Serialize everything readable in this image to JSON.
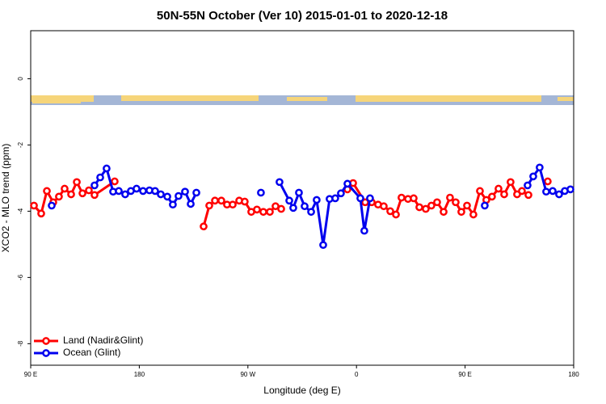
{
  "chart_data": {
    "type": "line",
    "title": "50N-55N October (Ver 10)   2015-01-01 to 2020-12-18",
    "x_label": "Longitude (deg E)",
    "y_label": "XCO2 - MLO trend (ppm)",
    "xlim": [
      90,
      540
    ],
    "ylim": [
      -8.65,
      1.45
    ],
    "xticks": [
      {
        "value": 90,
        "label": "90 E"
      },
      {
        "value": 180,
        "label": "180"
      },
      {
        "value": 270,
        "label": "90 W"
      },
      {
        "value": 360,
        "label": "0"
      },
      {
        "value": 450,
        "label": "90 E"
      },
      {
        "value": 540,
        "label": "180"
      }
    ],
    "yticks": [
      0,
      -2,
      -4,
      -6,
      -8
    ],
    "legend": "bottom-left",
    "series": [
      {
        "name": "Land (Nadir&Glint)",
        "color": "#ff0000",
        "x": [
          92.7,
          98.7,
          103.4,
          108.7,
          113.4,
          118.1,
          123.5,
          128.2,
          132.9,
          138.2,
          142.9,
          159.6,
          null,
          233.3,
          238.0,
          242.7,
          248.0,
          252.7,
          257.4,
          262.8,
          267.4,
          272.8,
          277.5,
          282.8,
          288.2,
          292.9,
          297.6,
          null,
          352.5,
          357.2,
          367.2,
          372.6,
          377.9,
          382.6,
          388.0,
          392.7,
          397.3,
          402.7,
          407.4,
          412.1,
          417.4,
          422.1,
          426.8,
          432.2,
          437.5,
          442.2,
          446.9,
          451.6,
          456.9,
          462.3,
          467.6,
          472.3,
          477.7,
          482.4,
          487.7,
          493.1,
          497.1,
          502.5,
          null,
          518.5
        ],
        "values": [
          -3.83,
          -4.07,
          -3.39,
          -3.73,
          -3.56,
          -3.32,
          -3.49,
          -3.12,
          -3.46,
          -3.37,
          -3.51,
          -3.1,
          null,
          -4.46,
          -3.83,
          -3.68,
          -3.68,
          -3.8,
          -3.8,
          -3.68,
          -3.71,
          -4.02,
          -3.95,
          -4.02,
          -4.02,
          -3.85,
          -3.93,
          null,
          -3.34,
          -3.15,
          -3.73,
          -3.73,
          -3.8,
          -3.85,
          -4.0,
          -4.1,
          -3.59,
          -3.63,
          -3.61,
          -3.88,
          -3.93,
          -3.83,
          -3.73,
          -4.02,
          -3.59,
          -3.73,
          -4.02,
          -3.83,
          -4.1,
          -3.39,
          -3.66,
          -3.56,
          -3.32,
          -3.49,
          -3.12,
          -3.49,
          -3.39,
          -3.51,
          null,
          -3.1
        ]
      },
      {
        "name": "Ocean (Glint)",
        "color": "#0000ee",
        "x": [
          107.4,
          null,
          142.9,
          147.6,
          152.9,
          158.3,
          163.0,
          168.3,
          173.0,
          177.7,
          183.1,
          188.4,
          193.1,
          197.8,
          203.2,
          207.8,
          212.5,
          217.9,
          222.6,
          227.3,
          null,
          280.8,
          null,
          296.2,
          304.3,
          307.6,
          312.3,
          317.0,
          322.4,
          327.0,
          332.4,
          337.7,
          342.4,
          347.1,
          352.5,
          363.2,
          366.5,
          371.2,
          null,
          466.3,
          null,
          501.8,
          506.5,
          511.8,
          517.2,
          522.6,
          527.9,
          532.6,
          537.3
        ],
        "values": [
          -3.83,
          null,
          -3.22,
          -2.98,
          -2.71,
          -3.41,
          -3.39,
          -3.49,
          -3.39,
          -3.32,
          -3.39,
          -3.37,
          -3.39,
          -3.49,
          -3.56,
          -3.8,
          -3.54,
          -3.41,
          -3.78,
          -3.44,
          null,
          -3.44,
          null,
          -3.12,
          -3.68,
          -3.9,
          -3.44,
          -3.85,
          -4.02,
          -3.66,
          -5.02,
          -3.63,
          -3.61,
          -3.46,
          -3.17,
          -3.61,
          -4.59,
          -3.61,
          null,
          -3.83,
          null,
          -3.22,
          -2.95,
          -2.68,
          -3.41,
          -3.39,
          -3.49,
          -3.39,
          -3.34
        ]
      }
    ]
  }
}
